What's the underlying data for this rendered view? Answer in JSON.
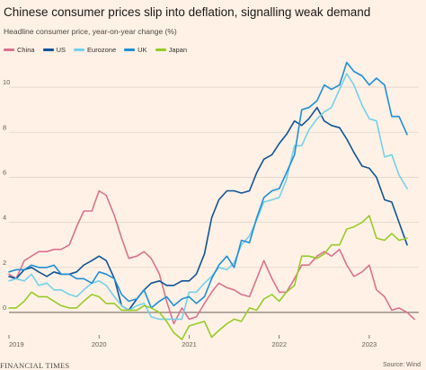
{
  "header": {
    "title": "Chinese consumer prices slip into deflation, signalling weak demand",
    "subtitle": "Headline consumer price, year-on-year change (%)"
  },
  "footer": {
    "brand": "FINANCIAL TIMES",
    "source": "Source: Wind"
  },
  "colors": {
    "background": "#fff1e5",
    "grid": "#e0d5ca",
    "zero_line": "#66605c",
    "tick_text": "#66605c"
  },
  "chart_data": {
    "type": "line",
    "title": "Chinese consumer prices slip into deflation, signalling weak demand",
    "ylabel": "Headline consumer price, year-on-year change (%)",
    "ylim": [
      -1,
      11
    ],
    "xlim": [
      2019.0,
      2023.55
    ],
    "yticks": [
      0,
      2,
      4,
      6,
      8,
      10
    ],
    "xticks": [
      "2019",
      "2020",
      "2021",
      "2022",
      "2023"
    ],
    "grid": true,
    "legend_position": "top-left",
    "series": [
      {
        "name": "China",
        "color": "#d9728f",
        "values": [
          [
            2019.0,
            1.7
          ],
          [
            2019.08,
            1.5
          ],
          [
            2019.17,
            2.3
          ],
          [
            2019.25,
            2.5
          ],
          [
            2019.33,
            2.7
          ],
          [
            2019.42,
            2.7
          ],
          [
            2019.5,
            2.8
          ],
          [
            2019.58,
            2.8
          ],
          [
            2019.67,
            3.0
          ],
          [
            2019.75,
            3.8
          ],
          [
            2019.83,
            4.5
          ],
          [
            2019.92,
            4.5
          ],
          [
            2020.0,
            5.4
          ],
          [
            2020.08,
            5.2
          ],
          [
            2020.17,
            4.3
          ],
          [
            2020.25,
            3.3
          ],
          [
            2020.33,
            2.4
          ],
          [
            2020.42,
            2.5
          ],
          [
            2020.5,
            2.7
          ],
          [
            2020.58,
            2.4
          ],
          [
            2020.67,
            1.7
          ],
          [
            2020.75,
            0.5
          ],
          [
            2020.83,
            -0.5
          ],
          [
            2020.92,
            0.2
          ],
          [
            2021.0,
            -0.3
          ],
          [
            2021.08,
            -0.2
          ],
          [
            2021.17,
            0.4
          ],
          [
            2021.25,
            0.9
          ],
          [
            2021.33,
            1.3
          ],
          [
            2021.42,
            1.1
          ],
          [
            2021.5,
            1.0
          ],
          [
            2021.58,
            0.8
          ],
          [
            2021.67,
            0.7
          ],
          [
            2021.75,
            1.5
          ],
          [
            2021.83,
            2.3
          ],
          [
            2021.92,
            1.5
          ],
          [
            2022.0,
            0.9
          ],
          [
            2022.08,
            0.9
          ],
          [
            2022.17,
            1.5
          ],
          [
            2022.25,
            2.1
          ],
          [
            2022.33,
            2.1
          ],
          [
            2022.42,
            2.5
          ],
          [
            2022.5,
            2.7
          ],
          [
            2022.58,
            2.5
          ],
          [
            2022.67,
            2.8
          ],
          [
            2022.75,
            2.1
          ],
          [
            2022.83,
            1.6
          ],
          [
            2022.92,
            1.8
          ],
          [
            2023.0,
            2.1
          ],
          [
            2023.08,
            1.0
          ],
          [
            2023.17,
            0.7
          ],
          [
            2023.25,
            0.1
          ],
          [
            2023.33,
            0.2
          ],
          [
            2023.42,
            0.0
          ],
          [
            2023.5,
            -0.3
          ]
        ]
      },
      {
        "name": "US",
        "color": "#0f5499",
        "values": [
          [
            2019.0,
            1.6
          ],
          [
            2019.08,
            1.5
          ],
          [
            2019.17,
            1.9
          ],
          [
            2019.25,
            2.0
          ],
          [
            2019.33,
            1.8
          ],
          [
            2019.42,
            1.6
          ],
          [
            2019.5,
            1.8
          ],
          [
            2019.58,
            1.7
          ],
          [
            2019.67,
            1.7
          ],
          [
            2019.75,
            1.8
          ],
          [
            2019.83,
            2.1
          ],
          [
            2019.92,
            2.3
          ],
          [
            2020.0,
            2.5
          ],
          [
            2020.08,
            2.3
          ],
          [
            2020.17,
            1.5
          ],
          [
            2020.25,
            0.3
          ],
          [
            2020.33,
            0.1
          ],
          [
            2020.42,
            0.6
          ],
          [
            2020.5,
            1.0
          ],
          [
            2020.58,
            1.3
          ],
          [
            2020.67,
            1.4
          ],
          [
            2020.75,
            1.2
          ],
          [
            2020.83,
            1.2
          ],
          [
            2020.92,
            1.4
          ],
          [
            2021.0,
            1.4
          ],
          [
            2021.08,
            1.7
          ],
          [
            2021.17,
            2.6
          ],
          [
            2021.25,
            4.2
          ],
          [
            2021.33,
            5.0
          ],
          [
            2021.42,
            5.4
          ],
          [
            2021.5,
            5.4
          ],
          [
            2021.58,
            5.3
          ],
          [
            2021.67,
            5.4
          ],
          [
            2021.75,
            6.2
          ],
          [
            2021.83,
            6.8
          ],
          [
            2021.92,
            7.0
          ],
          [
            2022.0,
            7.5
          ],
          [
            2022.08,
            7.9
          ],
          [
            2022.17,
            8.5
          ],
          [
            2022.25,
            8.3
          ],
          [
            2022.33,
            8.6
          ],
          [
            2022.42,
            9.1
          ],
          [
            2022.5,
            8.5
          ],
          [
            2022.58,
            8.3
          ],
          [
            2022.67,
            8.2
          ],
          [
            2022.75,
            7.7
          ],
          [
            2022.83,
            7.1
          ],
          [
            2022.92,
            6.5
          ],
          [
            2023.0,
            6.4
          ],
          [
            2023.08,
            6.0
          ],
          [
            2023.17,
            5.0
          ],
          [
            2023.25,
            4.9
          ],
          [
            2023.33,
            4.0
          ],
          [
            2023.42,
            3.0
          ]
        ]
      },
      {
        "name": "Eurozone",
        "color": "#74d1ea",
        "values": [
          [
            2019.0,
            1.4
          ],
          [
            2019.08,
            1.5
          ],
          [
            2019.17,
            1.4
          ],
          [
            2019.25,
            1.7
          ],
          [
            2019.33,
            1.2
          ],
          [
            2019.42,
            1.3
          ],
          [
            2019.5,
            1.0
          ],
          [
            2019.58,
            1.0
          ],
          [
            2019.67,
            0.8
          ],
          [
            2019.75,
            0.7
          ],
          [
            2019.83,
            1.0
          ],
          [
            2019.92,
            1.3
          ],
          [
            2020.0,
            1.4
          ],
          [
            2020.08,
            1.2
          ],
          [
            2020.17,
            0.7
          ],
          [
            2020.25,
            0.3
          ],
          [
            2020.33,
            0.1
          ],
          [
            2020.42,
            0.3
          ],
          [
            2020.5,
            0.4
          ],
          [
            2020.58,
            -0.2
          ],
          [
            2020.67,
            -0.3
          ],
          [
            2020.75,
            -0.3
          ],
          [
            2020.83,
            -0.3
          ],
          [
            2020.92,
            -0.3
          ],
          [
            2021.0,
            0.9
          ],
          [
            2021.08,
            0.9
          ],
          [
            2021.17,
            1.3
          ],
          [
            2021.25,
            1.6
          ],
          [
            2021.33,
            2.0
          ],
          [
            2021.42,
            1.9
          ],
          [
            2021.5,
            2.2
          ],
          [
            2021.58,
            3.0
          ],
          [
            2021.67,
            3.4
          ],
          [
            2021.75,
            4.1
          ],
          [
            2021.83,
            4.9
          ],
          [
            2021.92,
            5.0
          ],
          [
            2022.0,
            5.1
          ],
          [
            2022.08,
            5.9
          ],
          [
            2022.17,
            7.4
          ],
          [
            2022.25,
            7.4
          ],
          [
            2022.33,
            8.1
          ],
          [
            2022.42,
            8.6
          ],
          [
            2022.5,
            8.9
          ],
          [
            2022.58,
            9.1
          ],
          [
            2022.67,
            9.9
          ],
          [
            2022.75,
            10.6
          ],
          [
            2022.83,
            10.1
          ],
          [
            2022.92,
            9.2
          ],
          [
            2023.0,
            8.6
          ],
          [
            2023.08,
            8.5
          ],
          [
            2023.17,
            6.9
          ],
          [
            2023.25,
            7.0
          ],
          [
            2023.33,
            6.1
          ],
          [
            2023.42,
            5.5
          ]
        ]
      },
      {
        "name": "UK",
        "color": "#1f8fd6",
        "values": [
          [
            2019.0,
            1.8
          ],
          [
            2019.08,
            1.9
          ],
          [
            2019.17,
            1.9
          ],
          [
            2019.25,
            2.1
          ],
          [
            2019.33,
            2.0
          ],
          [
            2019.42,
            2.0
          ],
          [
            2019.5,
            2.1
          ],
          [
            2019.58,
            1.7
          ],
          [
            2019.67,
            1.7
          ],
          [
            2019.75,
            1.5
          ],
          [
            2019.83,
            1.5
          ],
          [
            2019.92,
            1.3
          ],
          [
            2020.0,
            1.8
          ],
          [
            2020.08,
            1.7
          ],
          [
            2020.17,
            1.5
          ],
          [
            2020.25,
            0.8
          ],
          [
            2020.33,
            0.5
          ],
          [
            2020.42,
            0.6
          ],
          [
            2020.5,
            1.0
          ],
          [
            2020.58,
            0.2
          ],
          [
            2020.67,
            0.5
          ],
          [
            2020.75,
            0.7
          ],
          [
            2020.83,
            0.3
          ],
          [
            2020.92,
            0.6
          ],
          [
            2021.0,
            0.7
          ],
          [
            2021.08,
            0.4
          ],
          [
            2021.17,
            0.7
          ],
          [
            2021.25,
            1.5
          ],
          [
            2021.33,
            2.1
          ],
          [
            2021.42,
            2.5
          ],
          [
            2021.5,
            2.0
          ],
          [
            2021.58,
            3.2
          ],
          [
            2021.67,
            3.1
          ],
          [
            2021.75,
            4.2
          ],
          [
            2021.83,
            5.1
          ],
          [
            2021.92,
            5.4
          ],
          [
            2022.0,
            5.5
          ],
          [
            2022.08,
            6.2
          ],
          [
            2022.17,
            7.0
          ],
          [
            2022.25,
            9.0
          ],
          [
            2022.33,
            9.1
          ],
          [
            2022.42,
            9.4
          ],
          [
            2022.5,
            10.1
          ],
          [
            2022.58,
            9.9
          ],
          [
            2022.67,
            10.1
          ],
          [
            2022.75,
            11.1
          ],
          [
            2022.83,
            10.7
          ],
          [
            2022.92,
            10.5
          ],
          [
            2023.0,
            10.1
          ],
          [
            2023.08,
            10.4
          ],
          [
            2023.17,
            10.1
          ],
          [
            2023.25,
            8.7
          ],
          [
            2023.33,
            8.7
          ],
          [
            2023.42,
            7.9
          ]
        ]
      },
      {
        "name": "Japan",
        "color": "#96cc28",
        "values": [
          [
            2019.0,
            0.2
          ],
          [
            2019.08,
            0.2
          ],
          [
            2019.17,
            0.5
          ],
          [
            2019.25,
            0.9
          ],
          [
            2019.33,
            0.7
          ],
          [
            2019.42,
            0.7
          ],
          [
            2019.5,
            0.5
          ],
          [
            2019.58,
            0.3
          ],
          [
            2019.67,
            0.2
          ],
          [
            2019.75,
            0.2
          ],
          [
            2019.83,
            0.5
          ],
          [
            2019.92,
            0.8
          ],
          [
            2020.0,
            0.7
          ],
          [
            2020.08,
            0.4
          ],
          [
            2020.17,
            0.4
          ],
          [
            2020.25,
            0.1
          ],
          [
            2020.33,
            0.1
          ],
          [
            2020.42,
            0.1
          ],
          [
            2020.5,
            0.3
          ],
          [
            2020.58,
            0.2
          ],
          [
            2020.67,
            0.0
          ],
          [
            2020.75,
            -0.4
          ],
          [
            2020.83,
            -0.9
          ],
          [
            2020.92,
            -1.2
          ],
          [
            2021.0,
            -0.6
          ],
          [
            2021.08,
            -0.5
          ],
          [
            2021.17,
            -0.4
          ],
          [
            2021.25,
            -1.1
          ],
          [
            2021.33,
            -0.8
          ],
          [
            2021.42,
            -0.5
          ],
          [
            2021.5,
            -0.3
          ],
          [
            2021.58,
            -0.4
          ],
          [
            2021.67,
            0.2
          ],
          [
            2021.75,
            0.1
          ],
          [
            2021.83,
            0.6
          ],
          [
            2021.92,
            0.8
          ],
          [
            2022.0,
            0.5
          ],
          [
            2022.08,
            0.9
          ],
          [
            2022.17,
            1.2
          ],
          [
            2022.25,
            2.5
          ],
          [
            2022.33,
            2.5
          ],
          [
            2022.42,
            2.4
          ],
          [
            2022.5,
            2.6
          ],
          [
            2022.58,
            3.0
          ],
          [
            2022.67,
            3.0
          ],
          [
            2022.75,
            3.7
          ],
          [
            2022.83,
            3.8
          ],
          [
            2022.92,
            4.0
          ],
          [
            2023.0,
            4.3
          ],
          [
            2023.08,
            3.3
          ],
          [
            2023.17,
            3.2
          ],
          [
            2023.25,
            3.5
          ],
          [
            2023.33,
            3.2
          ],
          [
            2023.42,
            3.3
          ]
        ]
      }
    ]
  }
}
